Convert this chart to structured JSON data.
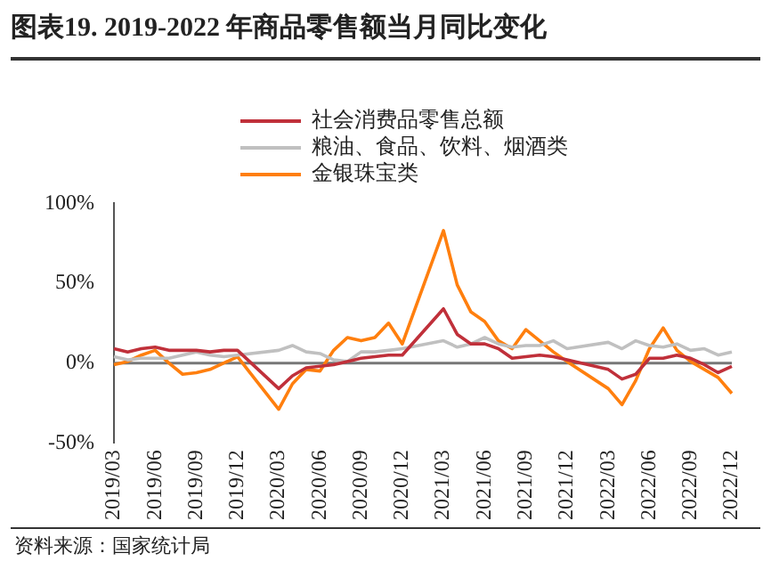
{
  "chart_data": {
    "type": "line",
    "title": "图表19. 2019-2022 年商品零售额当月同比变化",
    "categories": [
      "2019/03",
      null,
      null,
      "2019/06",
      null,
      null,
      "2019/09",
      null,
      null,
      "2019/12",
      null,
      null,
      "2020/03",
      null,
      null,
      "2020/06",
      null,
      null,
      "2020/09",
      null,
      null,
      "2020/12",
      null,
      null,
      "2021/03",
      null,
      null,
      "2021/06",
      null,
      null,
      "2021/09",
      null,
      null,
      "2021/12",
      null,
      null,
      "2022/03",
      null,
      null,
      "2022/06",
      null,
      null,
      "2022/09",
      null,
      null,
      "2022/12"
    ],
    "series": [
      {
        "name": "社会消费品零售总额",
        "color": "#c0303a",
        "values": [
          9,
          7,
          9,
          10,
          8,
          8,
          8,
          7,
          8,
          8,
          null,
          null,
          -16,
          -8,
          -3,
          -2,
          -1,
          1,
          3,
          4,
          5,
          5,
          null,
          null,
          34,
          18,
          12,
          12,
          9,
          3,
          4,
          5,
          4,
          2,
          null,
          null,
          -4,
          -10,
          -7,
          3,
          3,
          5,
          3,
          -1,
          -6,
          -2
        ]
      },
      {
        "name": "粮油、食品、饮料、烟酒类",
        "color": "#c0c0c0",
        "values": [
          4,
          2,
          3,
          3,
          3,
          5,
          7,
          5,
          4,
          5,
          null,
          null,
          8,
          11,
          7,
          6,
          2,
          1,
          7,
          7,
          8,
          9,
          null,
          null,
          14,
          10,
          12,
          16,
          12,
          10,
          11,
          11,
          14,
          9,
          null,
          null,
          13,
          9,
          14,
          11,
          10,
          12,
          8,
          9,
          5,
          7
        ]
      },
      {
        "name": "金银珠宝类",
        "color": "#ff7f0e",
        "values": [
          -1,
          1,
          5,
          8,
          0,
          -7,
          -6,
          -4,
          0,
          4,
          null,
          null,
          -29,
          -13,
          -4,
          -5,
          8,
          16,
          14,
          16,
          25,
          12,
          null,
          null,
          83,
          49,
          32,
          26,
          14,
          9,
          21,
          14,
          7,
          1,
          null,
          null,
          -16,
          -26,
          -11,
          9,
          22,
          8,
          1,
          -4,
          -9,
          -19
        ]
      }
    ],
    "ylim": [
      -50,
      100
    ],
    "yticks": [
      {
        "value": -50,
        "label": "-50%"
      },
      {
        "value": 0,
        "label": "0%"
      },
      {
        "value": 50,
        "label": "50%"
      },
      {
        "value": 100,
        "label": "100%"
      }
    ],
    "ref_lines": [
      {
        "axis": "y",
        "value": 0,
        "color": "#777777"
      }
    ],
    "grid": false,
    "legend": "top",
    "marker": "none",
    "line_style": "solid",
    "annotations": [
      "资料来源：国家统计局"
    ]
  }
}
